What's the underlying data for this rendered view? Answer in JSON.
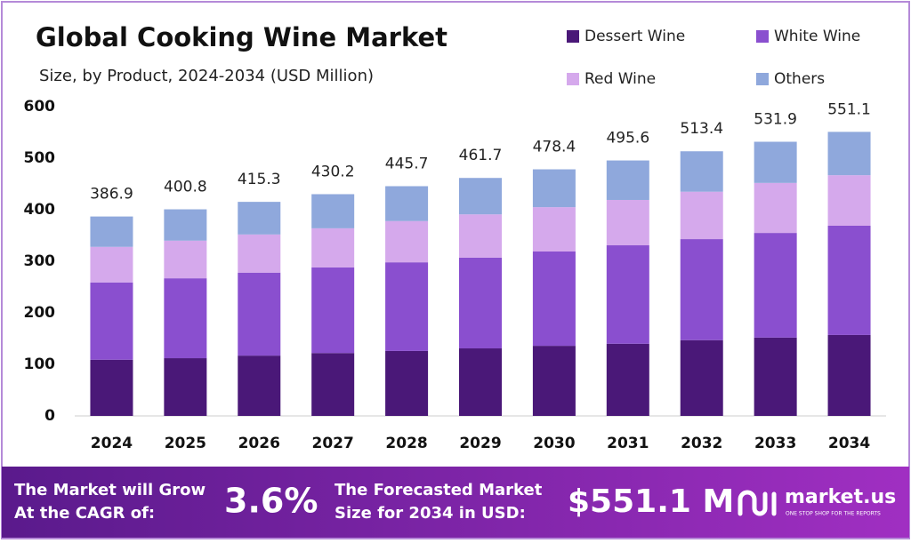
{
  "chart_data": {
    "type": "stacked_bar",
    "title": "Global Cooking Wine Market",
    "subtitle": "Size, by Product, 2024-2034 (USD Million)",
    "categories": [
      "2024",
      "2025",
      "2026",
      "2027",
      "2028",
      "2029",
      "2030",
      "2031",
      "2032",
      "2033",
      "2034"
    ],
    "series": [
      {
        "name": "Dessert Wine",
        "color": "#4a1878",
        "values": [
          109,
          112,
          117,
          122,
          126,
          131,
          136,
          140,
          147,
          152,
          157
        ]
      },
      {
        "name": "White Wine",
        "color": "#8a4fcf",
        "values": [
          150,
          155,
          161,
          166,
          172,
          176,
          183,
          191,
          196,
          203,
          212
        ]
      },
      {
        "name": "Red Wine",
        "color": "#d5a9ec",
        "values": [
          69,
          73,
          74,
          76,
          80,
          84,
          86,
          88,
          92,
          97,
          98
        ]
      },
      {
        "name": "Others",
        "color": "#8fa8dc",
        "values": [
          58.9,
          60.8,
          63.3,
          66.2,
          67.7,
          70.7,
          73.4,
          76.6,
          78.4,
          79.9,
          84.1
        ]
      }
    ],
    "totals": [
      386.9,
      400.8,
      415.3,
      430.2,
      445.7,
      461.7,
      478.4,
      495.6,
      513.4,
      531.9,
      551.1
    ],
    "ylim": [
      0,
      600
    ],
    "yticks": [
      0,
      100,
      200,
      300,
      400,
      500,
      600
    ],
    "grid": false
  },
  "footer": {
    "cagr_text": [
      "The Market will Grow",
      "At the CAGR of:"
    ],
    "cagr_value": "3.6%",
    "forecast_text": [
      "The Forecasted Market",
      "Size for 2034 in USD:"
    ],
    "forecast_value": "$551.1 M",
    "brand": "market.us",
    "tagline": "ONE STOP SHOP FOR THE REPORTS"
  }
}
